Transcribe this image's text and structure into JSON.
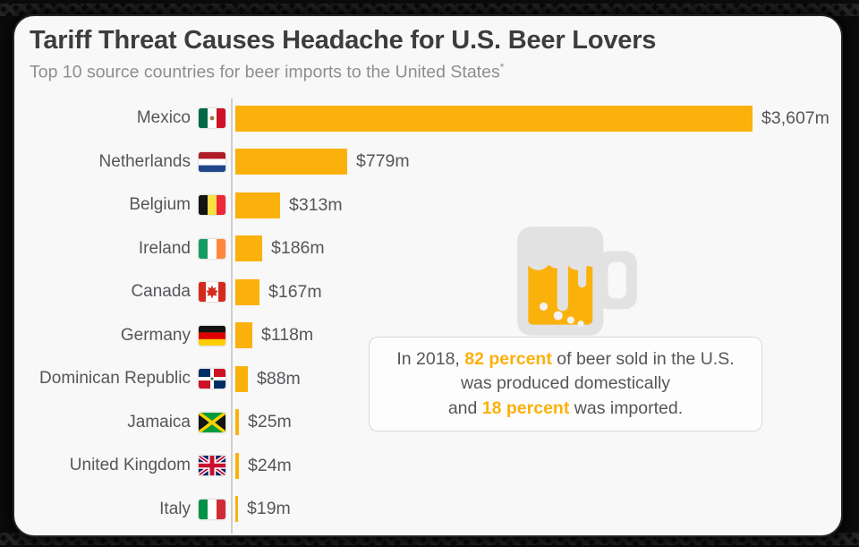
{
  "header": {
    "title": "Tariff Threat Causes Headache for U.S. Beer Lovers",
    "subtitle": "Top 10 source countries for beer imports to the United States",
    "subtitle_note": "*"
  },
  "chart_data": {
    "type": "bar",
    "orientation": "horizontal",
    "title": "Top 10 source countries for beer imports to the United States",
    "categories": [
      "Mexico",
      "Netherlands",
      "Belgium",
      "Ireland",
      "Canada",
      "Germany",
      "Dominican Republic",
      "Jamaica",
      "United Kingdom",
      "Italy"
    ],
    "values": [
      3607,
      779,
      313,
      186,
      167,
      118,
      88,
      25,
      24,
      19
    ],
    "value_labels": [
      "$3,607m",
      "$779m",
      "$313m",
      "$186m",
      "$167m",
      "$118m",
      "$88m",
      "$25m",
      "$24m",
      "$19m"
    ],
    "value_prefix": "$",
    "value_suffix": "m",
    "xlim": [
      0,
      3607
    ],
    "grid": false,
    "legend": false,
    "flag_icons": [
      "mexico-flag-icon",
      "netherlands-flag-icon",
      "belgium-flag-icon",
      "ireland-flag-icon",
      "canada-flag-icon",
      "germany-flag-icon",
      "dominican-republic-flag-icon",
      "jamaica-flag-icon",
      "united-kingdom-flag-icon",
      "italy-flag-icon"
    ]
  },
  "callout": {
    "lines": [
      [
        {
          "text": "In 2018, "
        },
        {
          "text": "82 percent",
          "highlight": true
        },
        {
          "text": " of beer sold in the U.S."
        }
      ],
      [
        {
          "text": "was produced domestically"
        }
      ],
      [
        {
          "text": "and "
        },
        {
          "text": "18 percent",
          "highlight": true
        },
        {
          "text": " was imported."
        }
      ]
    ]
  },
  "icons": {
    "beer_mug": "beer-mug-icon"
  },
  "colors": {
    "accent": "#FBB10C",
    "bar": "#FBB10C",
    "card_background": "#F8F8F8",
    "frame_background": "#0B0B0B",
    "title_text": "#3D3D3F",
    "subtitle_text": "#8E8E90",
    "label_text": "#55565A",
    "callout_border": "#D9D9D9",
    "mug_gray": "#E2E2E2",
    "bubble": "#F3F3F3"
  }
}
